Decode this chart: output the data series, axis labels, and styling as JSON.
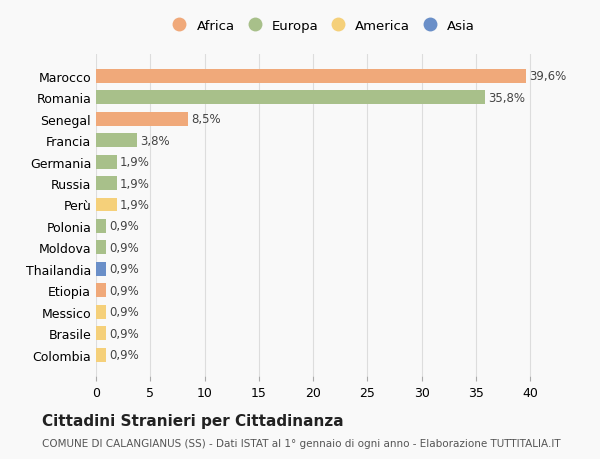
{
  "countries": [
    "Marocco",
    "Romania",
    "Senegal",
    "Francia",
    "Germania",
    "Russia",
    "Perù",
    "Polonia",
    "Moldova",
    "Thailandia",
    "Etiopia",
    "Messico",
    "Brasile",
    "Colombia"
  ],
  "values": [
    39.6,
    35.8,
    8.5,
    3.8,
    1.9,
    1.9,
    1.9,
    0.9,
    0.9,
    0.9,
    0.9,
    0.9,
    0.9,
    0.9
  ],
  "labels": [
    "39,6%",
    "35,8%",
    "8,5%",
    "3,8%",
    "1,9%",
    "1,9%",
    "1,9%",
    "0,9%",
    "0,9%",
    "0,9%",
    "0,9%",
    "0,9%",
    "0,9%",
    "0,9%"
  ],
  "continents": [
    "Africa",
    "Europa",
    "Africa",
    "Europa",
    "Europa",
    "Europa",
    "America",
    "Europa",
    "Europa",
    "Asia",
    "Africa",
    "America",
    "America",
    "America"
  ],
  "continent_colors": {
    "Africa": "#F0A97A",
    "Europa": "#A8C08A",
    "America": "#F5D07A",
    "Asia": "#6A8FC8"
  },
  "legend_order": [
    "Africa",
    "Europa",
    "America",
    "Asia"
  ],
  "title": "Cittadini Stranieri per Cittadinanza",
  "subtitle": "COMUNE DI CALANGIANUS (SS) - Dati ISTAT al 1° gennaio di ogni anno - Elaborazione TUTTITALIA.IT",
  "xlim": [
    0,
    42
  ],
  "xticks": [
    0,
    5,
    10,
    15,
    20,
    25,
    30,
    35,
    40
  ],
  "bg_color": "#f9f9f9",
  "grid_color": "#dddddd"
}
